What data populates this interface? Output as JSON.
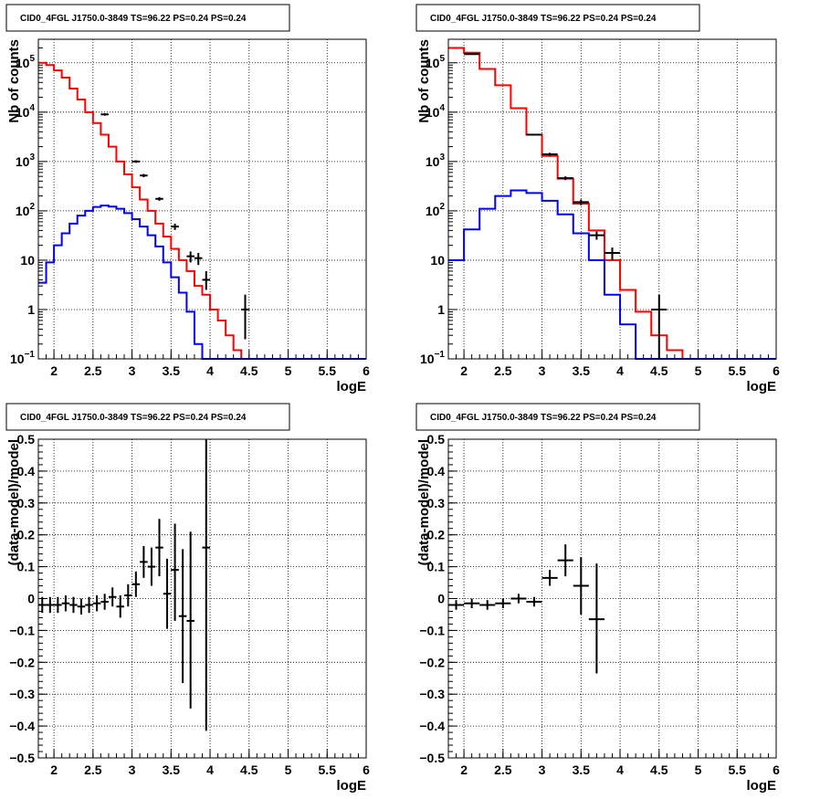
{
  "chart_data": [
    {
      "type": "line",
      "title": "CID0_4FGL J1750.0-3849 TS=96.22 PS=0.24 PS=0.24",
      "xlabel": "logE",
      "ylabel": "Nb of counts",
      "xlim": [
        1.8,
        6.0
      ],
      "ylim": [
        0.1,
        300000
      ],
      "yscale": "log",
      "grid": true,
      "x_ticks": [
        "2",
        "2.5",
        "3",
        "3.5",
        "4",
        "4.5",
        "5",
        "5.5",
        "6"
      ],
      "y_ticks": [
        {
          "v": 0.1,
          "base": "10",
          "exp": "−1"
        },
        {
          "v": 1,
          "base": "1",
          "exp": ""
        },
        {
          "v": 10,
          "base": "10",
          "exp": ""
        },
        {
          "v": 100,
          "base": "10",
          "exp": "2"
        },
        {
          "v": 1000,
          "base": "10",
          "exp": "3"
        },
        {
          "v": 10000,
          "base": "10",
          "exp": "4"
        },
        {
          "v": 100000,
          "base": "10",
          "exp": "5"
        }
      ],
      "bin_edges": [
        1.8,
        1.9,
        2.0,
        2.1,
        2.2,
        2.3,
        2.4,
        2.5,
        2.6,
        2.7,
        2.8,
        2.9,
        3.0,
        3.1,
        3.2,
        3.3,
        3.4,
        3.5,
        3.6,
        3.7,
        3.8,
        3.9,
        4.0,
        4.1,
        4.2,
        4.3,
        4.4,
        4.5,
        4.6,
        4.7,
        4.8,
        4.9,
        5.0,
        5.1,
        5.2,
        5.3,
        5.4,
        5.5,
        5.6,
        5.7,
        5.8,
        5.9,
        6.0
      ],
      "series": [
        {
          "color": "#ff0000",
          "values": [
            100000,
            90000,
            70000,
            50000,
            30000,
            18000,
            10000,
            6000,
            3500,
            2000,
            1000,
            550,
            300,
            170,
            100,
            55,
            30,
            17,
            10,
            6,
            3,
            2,
            1,
            0.6,
            0.3,
            0.15,
            0.1,
            0.1,
            0.1,
            0.1,
            0.1,
            0.1,
            0.1,
            0.1,
            0.1,
            0.1,
            0.1,
            0.1,
            0.1,
            0.1,
            0.1,
            0.1
          ]
        },
        {
          "color": "#0000ff",
          "values": [
            3.5,
            9,
            20,
            35,
            55,
            80,
            100,
            120,
            128,
            122,
            110,
            90,
            68,
            48,
            32,
            19,
            9,
            4.5,
            2.2,
            0.9,
            0.2,
            0.1,
            0.1,
            0.1,
            0.1,
            0.1,
            0.1,
            0.1,
            0.1,
            0.1,
            0.1,
            0.1,
            0.1,
            0.1,
            0.1,
            0.1,
            0.1,
            0.1,
            0.1,
            0.1,
            0.1,
            0.1
          ]
        }
      ],
      "points": [
        {
          "x": 2.65,
          "y": 9000,
          "dx": 0.05,
          "ylo": 8500,
          "yhi": 9500
        },
        {
          "x": 3.05,
          "y": 1000,
          "dx": 0.05,
          "ylo": 940,
          "yhi": 1060
        },
        {
          "x": 3.15,
          "y": 520,
          "dx": 0.05,
          "ylo": 480,
          "yhi": 560
        },
        {
          "x": 3.35,
          "y": 175,
          "dx": 0.05,
          "ylo": 160,
          "yhi": 190
        },
        {
          "x": 3.55,
          "y": 48,
          "dx": 0.05,
          "ylo": 41,
          "yhi": 55
        },
        {
          "x": 3.75,
          "y": 12,
          "dx": 0.05,
          "ylo": 9,
          "yhi": 15
        },
        {
          "x": 3.85,
          "y": 11,
          "dx": 0.05,
          "ylo": 8,
          "yhi": 14
        },
        {
          "x": 3.95,
          "y": 4,
          "dx": 0.05,
          "ylo": 2.5,
          "yhi": 6
        },
        {
          "x": 4.45,
          "y": 1,
          "dx": 0.05,
          "ylo": 0.25,
          "yhi": 2
        }
      ]
    },
    {
      "type": "line",
      "title": "CID0_4FGL J1750.0-3849 TS=96.22 PS=0.24 PS=0.24",
      "xlabel": "logE",
      "ylabel": "Nb of counts",
      "xlim": [
        1.8,
        6.0
      ],
      "ylim": [
        0.1,
        300000
      ],
      "yscale": "log",
      "grid": true,
      "x_ticks": [
        "2",
        "2.5",
        "3",
        "3.5",
        "4",
        "4.5",
        "5",
        "5.5",
        "6"
      ],
      "y_ticks": [
        {
          "v": 0.1,
          "base": "10",
          "exp": "−1"
        },
        {
          "v": 1,
          "base": "1",
          "exp": ""
        },
        {
          "v": 10,
          "base": "10",
          "exp": ""
        },
        {
          "v": 100,
          "base": "10",
          "exp": "2"
        },
        {
          "v": 1000,
          "base": "10",
          "exp": "3"
        },
        {
          "v": 10000,
          "base": "10",
          "exp": "4"
        },
        {
          "v": 100000,
          "base": "10",
          "exp": "5"
        }
      ],
      "bin_edges": [
        1.8,
        2.0,
        2.2,
        2.4,
        2.6,
        2.8,
        3.0,
        3.2,
        3.4,
        3.6,
        3.8,
        4.0,
        4.2,
        4.4,
        4.6,
        4.8,
        5.0,
        5.2,
        5.4,
        5.6,
        5.8,
        6.0
      ],
      "series": [
        {
          "color": "#ff0000",
          "values": [
            200000,
            160000,
            75000,
            35000,
            12000,
            3500,
            1300,
            450,
            140,
            40,
            10,
            2.5,
            0.9,
            0.3,
            0.15,
            0.1,
            0.1,
            0.1,
            0.1,
            0.1,
            0.1
          ]
        },
        {
          "color": "#0000ff",
          "values": [
            10,
            42,
            110,
            200,
            260,
            230,
            160,
            85,
            35,
            10,
            2,
            0.5,
            0.1,
            0.1,
            0.1,
            0.1,
            0.1,
            0.1,
            0.1,
            0.1,
            0.1
          ]
        }
      ],
      "points": [
        {
          "x": 2.1,
          "y": 150000,
          "dx": 0.1,
          "ylo": 145000,
          "yhi": 155000
        },
        {
          "x": 2.9,
          "y": 3500,
          "dx": 0.1,
          "ylo": 3350,
          "yhi": 3650
        },
        {
          "x": 3.1,
          "y": 1400,
          "dx": 0.1,
          "ylo": 1300,
          "yhi": 1500
        },
        {
          "x": 3.3,
          "y": 460,
          "dx": 0.1,
          "ylo": 420,
          "yhi": 500
        },
        {
          "x": 3.5,
          "y": 150,
          "dx": 0.1,
          "ylo": 130,
          "yhi": 170
        },
        {
          "x": 3.7,
          "y": 32,
          "dx": 0.1,
          "ylo": 26,
          "yhi": 38
        },
        {
          "x": 3.9,
          "y": 14,
          "dx": 0.1,
          "ylo": 10,
          "yhi": 18
        },
        {
          "x": 4.5,
          "y": 1,
          "dx": 0.1,
          "ylo": 0.1,
          "yhi": 2
        }
      ]
    },
    {
      "type": "scatter",
      "title": "CID0_4FGL J1750.0-3849 TS=96.22 PS=0.24 PS=0.24",
      "xlabel": "logE",
      "ylabel": "(data-model)/model",
      "xlim": [
        1.8,
        6.0
      ],
      "ylim": [
        -0.5,
        0.5
      ],
      "grid": true,
      "x_ticks": [
        "2",
        "2.5",
        "3",
        "3.5",
        "4",
        "4.5",
        "5",
        "5.5",
        "6"
      ],
      "y_ticks": [
        "−0.5",
        "−0.4",
        "−0.3",
        "−0.2",
        "−0.1",
        "0",
        "0.1",
        "0.2",
        "0.3",
        "0.4",
        "0.5"
      ],
      "points": [
        {
          "x": 1.85,
          "y": -0.02,
          "dx": 0.05,
          "ylo": -0.045,
          "yhi": 0.005
        },
        {
          "x": 1.95,
          "y": -0.02,
          "dx": 0.05,
          "ylo": -0.045,
          "yhi": 0.005
        },
        {
          "x": 2.05,
          "y": -0.02,
          "dx": 0.05,
          "ylo": -0.045,
          "yhi": 0.005
        },
        {
          "x": 2.15,
          "y": -0.015,
          "dx": 0.05,
          "ylo": -0.04,
          "yhi": 0.01
        },
        {
          "x": 2.25,
          "y": -0.02,
          "dx": 0.05,
          "ylo": -0.045,
          "yhi": 0.005
        },
        {
          "x": 2.35,
          "y": -0.025,
          "dx": 0.05,
          "ylo": -0.05,
          "yhi": 0.0
        },
        {
          "x": 2.45,
          "y": -0.02,
          "dx": 0.05,
          "ylo": -0.045,
          "yhi": 0.005
        },
        {
          "x": 2.55,
          "y": -0.015,
          "dx": 0.05,
          "ylo": -0.04,
          "yhi": 0.01
        },
        {
          "x": 2.65,
          "y": -0.01,
          "dx": 0.05,
          "ylo": -0.035,
          "yhi": 0.015
        },
        {
          "x": 2.75,
          "y": 0.005,
          "dx": 0.05,
          "ylo": -0.025,
          "yhi": 0.035
        },
        {
          "x": 2.85,
          "y": -0.025,
          "dx": 0.05,
          "ylo": -0.06,
          "yhi": 0.01
        },
        {
          "x": 2.95,
          "y": 0.01,
          "dx": 0.05,
          "ylo": -0.025,
          "yhi": 0.045
        },
        {
          "x": 3.05,
          "y": 0.045,
          "dx": 0.05,
          "ylo": 0.005,
          "yhi": 0.085
        },
        {
          "x": 3.15,
          "y": 0.115,
          "dx": 0.05,
          "ylo": 0.065,
          "yhi": 0.165
        },
        {
          "x": 3.25,
          "y": 0.1,
          "dx": 0.05,
          "ylo": 0.04,
          "yhi": 0.16
        },
        {
          "x": 3.35,
          "y": 0.16,
          "dx": 0.05,
          "ylo": 0.07,
          "yhi": 0.25
        },
        {
          "x": 3.45,
          "y": 0.015,
          "dx": 0.05,
          "ylo": -0.095,
          "yhi": 0.125
        },
        {
          "x": 3.55,
          "y": 0.09,
          "dx": 0.05,
          "ylo": -0.07,
          "yhi": 0.235
        },
        {
          "x": 3.65,
          "y": -0.055,
          "dx": 0.05,
          "ylo": -0.265,
          "yhi": 0.155
        },
        {
          "x": 3.75,
          "y": -0.07,
          "dx": 0.05,
          "ylo": -0.345,
          "yhi": 0.21
        },
        {
          "x": 3.95,
          "y": 0.16,
          "dx": 0.05,
          "ylo": -0.415,
          "yhi": 0.5
        }
      ]
    },
    {
      "type": "scatter",
      "title": "CID0_4FGL J1750.0-3849 TS=96.22 PS=0.24 PS=0.24",
      "xlabel": "logE",
      "ylabel": "(data-model)/model",
      "xlim": [
        1.8,
        6.0
      ],
      "ylim": [
        -0.5,
        0.5
      ],
      "grid": true,
      "x_ticks": [
        "2",
        "2.5",
        "3",
        "3.5",
        "4",
        "4.5",
        "5",
        "5.5",
        "6"
      ],
      "y_ticks": [
        "−0.5",
        "−0.4",
        "−0.3",
        "−0.2",
        "−0.1",
        "0",
        "0.1",
        "0.2",
        "0.3",
        "0.4",
        "0.5"
      ],
      "points": [
        {
          "x": 1.9,
          "y": -0.02,
          "dx": 0.1,
          "ylo": -0.035,
          "yhi": -0.005
        },
        {
          "x": 2.1,
          "y": -0.015,
          "dx": 0.1,
          "ylo": -0.03,
          "yhi": 0.0
        },
        {
          "x": 2.3,
          "y": -0.02,
          "dx": 0.1,
          "ylo": -0.035,
          "yhi": -0.005
        },
        {
          "x": 2.5,
          "y": -0.015,
          "dx": 0.1,
          "ylo": -0.03,
          "yhi": 0.0
        },
        {
          "x": 2.7,
          "y": 0.0,
          "dx": 0.1,
          "ylo": -0.015,
          "yhi": 0.015
        },
        {
          "x": 2.9,
          "y": -0.01,
          "dx": 0.1,
          "ylo": -0.025,
          "yhi": 0.005
        },
        {
          "x": 3.1,
          "y": 0.065,
          "dx": 0.1,
          "ylo": 0.04,
          "yhi": 0.09
        },
        {
          "x": 3.3,
          "y": 0.12,
          "dx": 0.1,
          "ylo": 0.07,
          "yhi": 0.17
        },
        {
          "x": 3.5,
          "y": 0.04,
          "dx": 0.1,
          "ylo": -0.05,
          "yhi": 0.13
        },
        {
          "x": 3.7,
          "y": -0.065,
          "dx": 0.1,
          "ylo": -0.235,
          "yhi": 0.11
        }
      ]
    }
  ]
}
